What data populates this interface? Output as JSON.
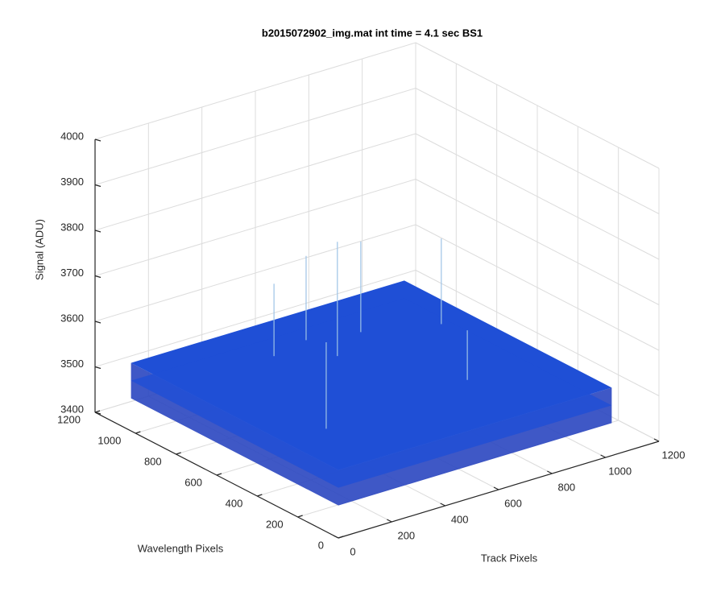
{
  "chart_data": {
    "type": "surface3d",
    "title": "b2015072902_img.mat int time = 4.1 sec   BS1",
    "x_label": "Track Pixels",
    "y_label": "Wavelength Pixels",
    "z_label": "Signal (ADU)",
    "xlim": [
      0,
      1200
    ],
    "ylim": [
      0,
      1200
    ],
    "zlim": [
      3400,
      4000
    ],
    "xticks": [
      0,
      200,
      400,
      600,
      800,
      1000,
      1200
    ],
    "yticks": [
      0,
      200,
      400,
      600,
      800,
      1000,
      1200
    ],
    "zticks": [
      3400,
      3500,
      3600,
      3700,
      3800,
      3900,
      4000
    ],
    "grid": true,
    "color": "#1f4fd6",
    "spike_color": "#9ec3e6",
    "surface": {
      "x": [
        1,
        1024
      ],
      "y": [
        1,
        1024
      ],
      "z": [
        [
          3510,
          3510
        ],
        [
          3510,
          3510
        ]
      ]
    },
    "spikes": {
      "x": [
        520,
        519,
        685,
        912,
        370,
        161,
        718
      ],
      "y": [
        690,
        843,
        792,
        694,
        805,
        272,
        310
      ],
      "z": [
        3800,
        3734,
        3748,
        3737,
        3708,
        3739,
        3658
      ]
    }
  }
}
